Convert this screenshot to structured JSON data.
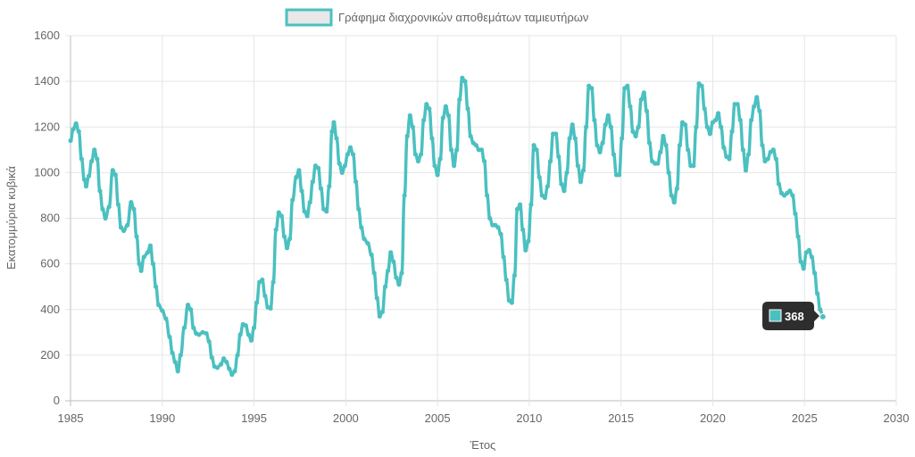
{
  "chart_data": {
    "type": "line",
    "legend": {
      "label": "Γράφημα διαχρονικών αποθεμάτων ταμιευτήρων",
      "position": "top"
    },
    "xlabel": "Έτος",
    "ylabel": "Εκατομμύρια κυβικά",
    "xlim": [
      1985,
      2030
    ],
    "ylim": [
      0,
      1600
    ],
    "x_ticks": [
      "1985",
      "1990",
      "1995",
      "2000",
      "2005",
      "2010",
      "2015",
      "2020",
      "2025",
      "2030"
    ],
    "y_ticks": [
      "0",
      "200",
      "400",
      "600",
      "800",
      "1000",
      "1200",
      "1400",
      "1600"
    ],
    "grid": true,
    "series": [
      {
        "name": "Γράφημα διαχρονικών αποθεμάτων ταμιευτήρων",
        "color": "#4bc0c0",
        "points": [
          [
            1985.0,
            1140
          ],
          [
            1985.15,
            1190
          ],
          [
            1985.3,
            1215
          ],
          [
            1985.45,
            1180
          ],
          [
            1985.6,
            1060
          ],
          [
            1985.75,
            970
          ],
          [
            1985.85,
            940
          ],
          [
            1986.0,
            985
          ],
          [
            1986.15,
            1050
          ],
          [
            1986.3,
            1100
          ],
          [
            1986.45,
            1060
          ],
          [
            1986.6,
            920
          ],
          [
            1986.75,
            840
          ],
          [
            1986.9,
            800
          ],
          [
            1987.1,
            850
          ],
          [
            1987.3,
            1010
          ],
          [
            1987.45,
            990
          ],
          [
            1987.6,
            860
          ],
          [
            1987.75,
            760
          ],
          [
            1987.9,
            745
          ],
          [
            1988.1,
            770
          ],
          [
            1988.3,
            870
          ],
          [
            1988.45,
            840
          ],
          [
            1988.6,
            720
          ],
          [
            1988.75,
            600
          ],
          [
            1988.85,
            570
          ],
          [
            1989.0,
            630
          ],
          [
            1989.2,
            650
          ],
          [
            1989.35,
            680
          ],
          [
            1989.5,
            600
          ],
          [
            1989.65,
            500
          ],
          [
            1989.8,
            420
          ],
          [
            1990.0,
            395
          ],
          [
            1990.2,
            360
          ],
          [
            1990.4,
            280
          ],
          [
            1990.55,
            210
          ],
          [
            1990.7,
            170
          ],
          [
            1990.85,
            130
          ],
          [
            1991.0,
            200
          ],
          [
            1991.2,
            320
          ],
          [
            1991.4,
            420
          ],
          [
            1991.55,
            400
          ],
          [
            1991.7,
            320
          ],
          [
            1991.85,
            295
          ],
          [
            1992.0,
            290
          ],
          [
            1992.2,
            300
          ],
          [
            1992.4,
            295
          ],
          [
            1992.55,
            260
          ],
          [
            1992.7,
            190
          ],
          [
            1992.85,
            150
          ],
          [
            1993.0,
            145
          ],
          [
            1993.2,
            160
          ],
          [
            1993.35,
            185
          ],
          [
            1993.5,
            170
          ],
          [
            1993.65,
            140
          ],
          [
            1993.8,
            115
          ],
          [
            1993.95,
            130
          ],
          [
            1994.1,
            200
          ],
          [
            1994.25,
            290
          ],
          [
            1994.4,
            335
          ],
          [
            1994.55,
            330
          ],
          [
            1994.7,
            290
          ],
          [
            1994.85,
            265
          ],
          [
            1995.0,
            320
          ],
          [
            1995.15,
            430
          ],
          [
            1995.3,
            520
          ],
          [
            1995.45,
            530
          ],
          [
            1995.6,
            460
          ],
          [
            1995.75,
            410
          ],
          [
            1995.9,
            405
          ],
          [
            1996.05,
            520
          ],
          [
            1996.2,
            750
          ],
          [
            1996.35,
            825
          ],
          [
            1996.5,
            810
          ],
          [
            1996.65,
            720
          ],
          [
            1996.8,
            670
          ],
          [
            1996.95,
            710
          ],
          [
            1997.1,
            880
          ],
          [
            1997.3,
            980
          ],
          [
            1997.45,
            1010
          ],
          [
            1997.6,
            920
          ],
          [
            1997.75,
            830
          ],
          [
            1997.9,
            810
          ],
          [
            1998.05,
            870
          ],
          [
            1998.2,
            960
          ],
          [
            1998.35,
            1030
          ],
          [
            1998.5,
            1020
          ],
          [
            1998.65,
            930
          ],
          [
            1998.8,
            840
          ],
          [
            1998.95,
            830
          ],
          [
            1999.1,
            940
          ],
          [
            1999.25,
            1180
          ],
          [
            1999.35,
            1220
          ],
          [
            1999.5,
            1150
          ],
          [
            1999.65,
            1040
          ],
          [
            1999.8,
            1000
          ],
          [
            1999.95,
            1030
          ],
          [
            2000.1,
            1080
          ],
          [
            2000.25,
            1110
          ],
          [
            2000.4,
            1080
          ],
          [
            2000.55,
            960
          ],
          [
            2000.7,
            840
          ],
          [
            2000.85,
            760
          ],
          [
            2001.0,
            710
          ],
          [
            2001.2,
            690
          ],
          [
            2001.4,
            640
          ],
          [
            2001.55,
            560
          ],
          [
            2001.7,
            450
          ],
          [
            2001.85,
            370
          ],
          [
            2002.0,
            390
          ],
          [
            2002.15,
            500
          ],
          [
            2002.3,
            570
          ],
          [
            2002.45,
            650
          ],
          [
            2002.6,
            610
          ],
          [
            2002.75,
            540
          ],
          [
            2002.9,
            510
          ],
          [
            2003.05,
            560
          ],
          [
            2003.2,
            900
          ],
          [
            2003.35,
            1160
          ],
          [
            2003.5,
            1250
          ],
          [
            2003.65,
            1200
          ],
          [
            2003.8,
            1080
          ],
          [
            2003.95,
            1050
          ],
          [
            2004.1,
            1080
          ],
          [
            2004.25,
            1230
          ],
          [
            2004.4,
            1300
          ],
          [
            2004.55,
            1280
          ],
          [
            2004.7,
            1150
          ],
          [
            2004.85,
            1030
          ],
          [
            2005.0,
            990
          ],
          [
            2005.15,
            1060
          ],
          [
            2005.3,
            1240
          ],
          [
            2005.45,
            1290
          ],
          [
            2005.6,
            1250
          ],
          [
            2005.75,
            1100
          ],
          [
            2005.9,
            1030
          ],
          [
            2006.05,
            1100
          ],
          [
            2006.2,
            1320
          ],
          [
            2006.35,
            1415
          ],
          [
            2006.5,
            1400
          ],
          [
            2006.65,
            1280
          ],
          [
            2006.8,
            1160
          ],
          [
            2006.95,
            1130
          ],
          [
            2007.1,
            1120
          ],
          [
            2007.25,
            1100
          ],
          [
            2007.4,
            1100
          ],
          [
            2007.55,
            1050
          ],
          [
            2007.7,
            900
          ],
          [
            2007.85,
            800
          ],
          [
            2008.0,
            770
          ],
          [
            2008.15,
            770
          ],
          [
            2008.3,
            760
          ],
          [
            2008.45,
            730
          ],
          [
            2008.6,
            630
          ],
          [
            2008.75,
            530
          ],
          [
            2008.9,
            440
          ],
          [
            2009.05,
            430
          ],
          [
            2009.2,
            550
          ],
          [
            2009.35,
            840
          ],
          [
            2009.5,
            860
          ],
          [
            2009.65,
            750
          ],
          [
            2009.8,
            660
          ],
          [
            2009.95,
            700
          ],
          [
            2010.1,
            860
          ],
          [
            2010.25,
            1120
          ],
          [
            2010.4,
            1100
          ],
          [
            2010.55,
            980
          ],
          [
            2010.7,
            900
          ],
          [
            2010.85,
            890
          ],
          [
            2011.0,
            940
          ],
          [
            2011.15,
            1050
          ],
          [
            2011.3,
            1170
          ],
          [
            2011.45,
            1170
          ],
          [
            2011.6,
            1070
          ],
          [
            2011.75,
            950
          ],
          [
            2011.9,
            920
          ],
          [
            2012.05,
            1000
          ],
          [
            2012.2,
            1150
          ],
          [
            2012.35,
            1210
          ],
          [
            2012.5,
            1150
          ],
          [
            2012.65,
            1030
          ],
          [
            2012.8,
            960
          ],
          [
            2012.95,
            1010
          ],
          [
            2013.1,
            1200
          ],
          [
            2013.25,
            1380
          ],
          [
            2013.4,
            1370
          ],
          [
            2013.55,
            1230
          ],
          [
            2013.7,
            1120
          ],
          [
            2013.85,
            1090
          ],
          [
            2014.0,
            1130
          ],
          [
            2014.15,
            1210
          ],
          [
            2014.3,
            1250
          ],
          [
            2014.45,
            1200
          ],
          [
            2014.6,
            1080
          ],
          [
            2014.75,
            990
          ],
          [
            2014.9,
            990
          ],
          [
            2015.05,
            1150
          ],
          [
            2015.2,
            1370
          ],
          [
            2015.35,
            1380
          ],
          [
            2015.5,
            1290
          ],
          [
            2015.65,
            1180
          ],
          [
            2015.8,
            1160
          ],
          [
            2015.95,
            1200
          ],
          [
            2016.1,
            1320
          ],
          [
            2016.25,
            1350
          ],
          [
            2016.4,
            1270
          ],
          [
            2016.55,
            1130
          ],
          [
            2016.7,
            1050
          ],
          [
            2016.85,
            1040
          ],
          [
            2017.0,
            1040
          ],
          [
            2017.15,
            1090
          ],
          [
            2017.3,
            1160
          ],
          [
            2017.45,
            1120
          ],
          [
            2017.6,
            1000
          ],
          [
            2017.75,
            900
          ],
          [
            2017.9,
            870
          ],
          [
            2018.05,
            930
          ],
          [
            2018.2,
            1120
          ],
          [
            2018.35,
            1220
          ],
          [
            2018.5,
            1210
          ],
          [
            2018.65,
            1100
          ],
          [
            2018.8,
            1030
          ],
          [
            2018.95,
            1030
          ],
          [
            2019.1,
            1200
          ],
          [
            2019.25,
            1390
          ],
          [
            2019.4,
            1380
          ],
          [
            2019.55,
            1280
          ],
          [
            2019.7,
            1200
          ],
          [
            2019.85,
            1170
          ],
          [
            2020.0,
            1220
          ],
          [
            2020.15,
            1230
          ],
          [
            2020.3,
            1260
          ],
          [
            2020.45,
            1200
          ],
          [
            2020.6,
            1110
          ],
          [
            2020.75,
            1070
          ],
          [
            2020.9,
            1060
          ],
          [
            2021.05,
            1180
          ],
          [
            2021.2,
            1300
          ],
          [
            2021.35,
            1300
          ],
          [
            2021.5,
            1230
          ],
          [
            2021.65,
            1100
          ],
          [
            2021.8,
            1010
          ],
          [
            2021.95,
            1080
          ],
          [
            2022.1,
            1230
          ],
          [
            2022.25,
            1290
          ],
          [
            2022.4,
            1330
          ],
          [
            2022.55,
            1270
          ],
          [
            2022.7,
            1120
          ],
          [
            2022.85,
            1050
          ],
          [
            2023.0,
            1060
          ],
          [
            2023.15,
            1090
          ],
          [
            2023.3,
            1100
          ],
          [
            2023.45,
            1060
          ],
          [
            2023.6,
            950
          ],
          [
            2023.75,
            910
          ],
          [
            2023.9,
            900
          ],
          [
            2024.05,
            910
          ],
          [
            2024.2,
            920
          ],
          [
            2024.35,
            900
          ],
          [
            2024.5,
            820
          ],
          [
            2024.65,
            720
          ],
          [
            2024.8,
            610
          ],
          [
            2024.95,
            580
          ],
          [
            2025.1,
            650
          ],
          [
            2025.25,
            660
          ],
          [
            2025.4,
            630
          ],
          [
            2025.55,
            560
          ],
          [
            2025.7,
            470
          ],
          [
            2025.85,
            400
          ],
          [
            2026.0,
            368
          ]
        ]
      }
    ],
    "tooltip": {
      "x": 2026.0,
      "value": 368,
      "text": "368"
    }
  }
}
